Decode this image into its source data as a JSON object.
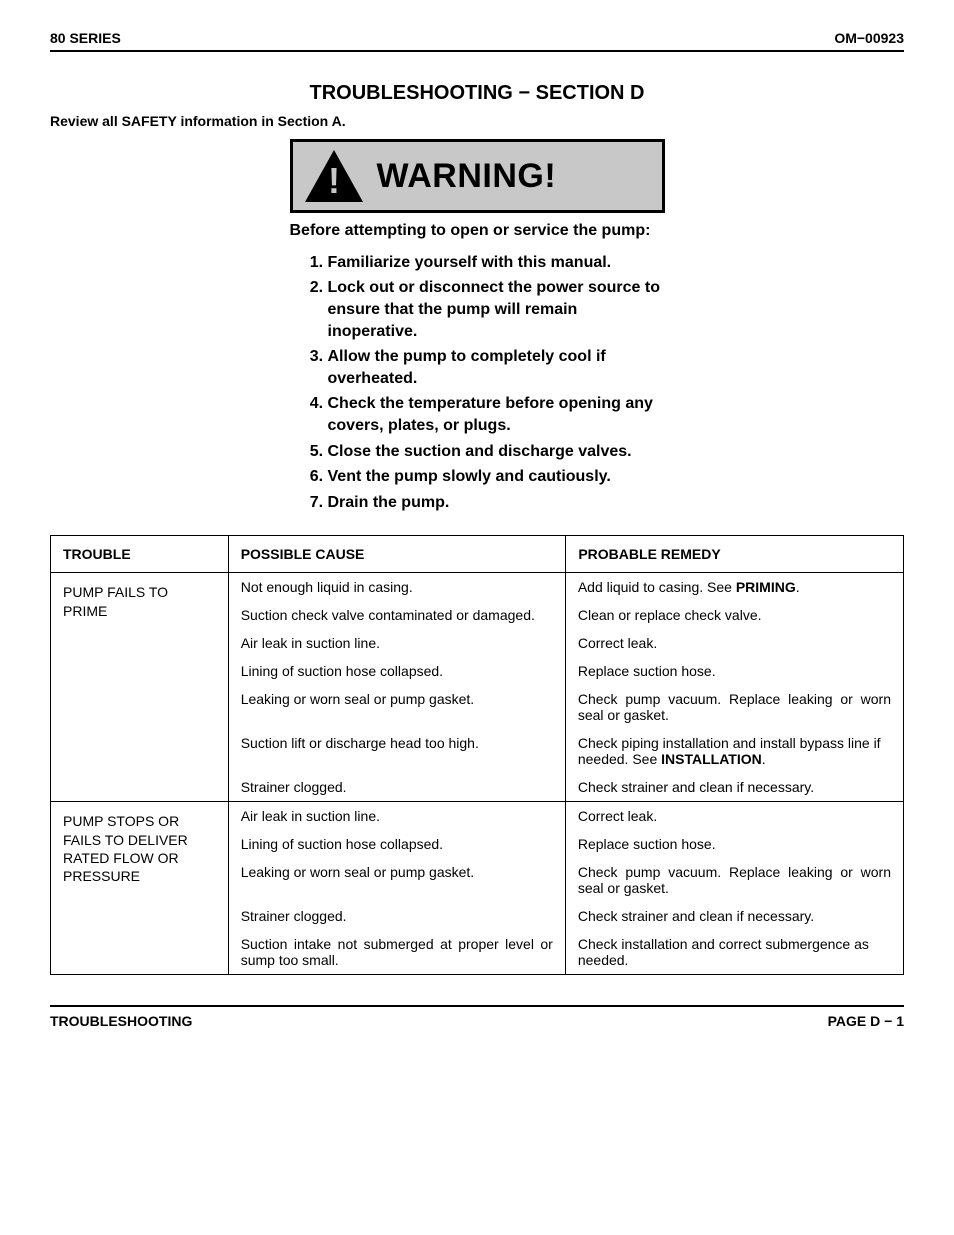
{
  "header": {
    "left": "80 SERIES",
    "right": "OM−00923"
  },
  "section_title": "TROUBLESHOOTING − SECTION D",
  "review_line": "Review all SAFETY information in Section A.",
  "warning": {
    "label": "WARNING!",
    "triangle_fill": "#000000",
    "bang_fill": "#c8c8c8",
    "box_bg": "#c8c8c8",
    "box_border": "#000000"
  },
  "before_text": "Before attempting to open or service the pump:",
  "steps": [
    "Familiarize yourself with this manual.",
    "Lock out or disconnect the power source to ensure that the pump will remain inoperative.",
    "Allow the pump to completely cool if overheated.",
    "Check the temperature before opening any covers, plates, or plugs.",
    "Close the suction and discharge valves.",
    "Vent the pump slowly and cautiously.",
    "Drain the pump."
  ],
  "table": {
    "columns": [
      "TROUBLE",
      "POSSIBLE CAUSE",
      "PROBABLE REMEDY"
    ],
    "groups": [
      {
        "trouble": "PUMP FAILS TO PRIME",
        "rows": [
          {
            "cause": "Not enough liquid in casing.",
            "remedy_html": "Add liquid to casing. See <b>PRIMING</b>."
          },
          {
            "cause": "Suction check valve contaminated or damaged.",
            "cause_justify": true,
            "remedy": "Clean or replace check valve."
          },
          {
            "cause": "Air leak in suction line.",
            "remedy": "Correct leak."
          },
          {
            "cause": "Lining of suction hose collapsed.",
            "remedy": "Replace suction hose."
          },
          {
            "cause": "Leaking or worn seal or pump gasket.",
            "remedy": "Check pump vacuum. Replace leaking or worn seal or gasket.",
            "remedy_justify": true
          },
          {
            "cause": "Suction lift or discharge head too high.",
            "remedy_html": "Check piping installation and install bypass line if needed. See <b>INSTALLATION</b>."
          },
          {
            "cause": "Strainer clogged.",
            "remedy": "Check strainer and clean if necessary."
          }
        ]
      },
      {
        "trouble": "PUMP STOPS OR FAILS TO DELIVER RATED FLOW OR PRESSURE",
        "rows": [
          {
            "cause": "Air leak in suction line.",
            "remedy": "Correct leak."
          },
          {
            "cause": "Lining of suction hose collapsed.",
            "remedy": "Replace suction hose."
          },
          {
            "cause": "Leaking or worn seal or pump gasket.",
            "remedy": "Check pump vacuum. Replace leaking or worn seal or gasket.",
            "remedy_justify": true
          },
          {
            "cause": "Strainer clogged.",
            "remedy": "Check strainer and clean if necessary."
          },
          {
            "cause": "Suction intake not submerged at proper level or sump too small.",
            "cause_justify": true,
            "remedy": "Check installation and correct submergence as needed."
          }
        ]
      }
    ]
  },
  "footer": {
    "left": "TROUBLESHOOTING",
    "right": "PAGE D − 1"
  }
}
